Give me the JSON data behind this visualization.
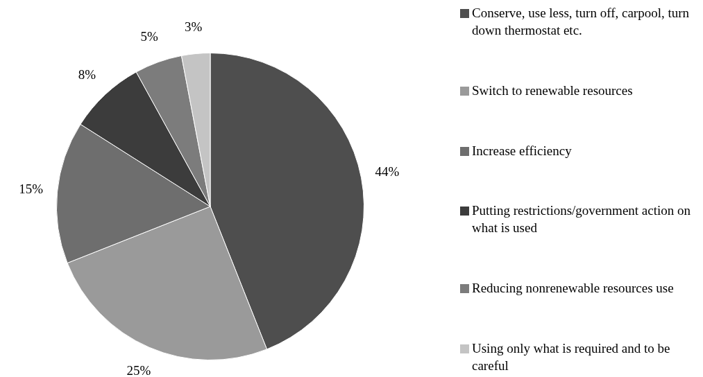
{
  "chart_data": {
    "type": "pie",
    "categories": [
      "Conserve, use less, turn off, carpool, turn down thermostat etc.",
      "Switch to renewable resources",
      "Increase efficiency",
      "Putting restrictions/government action on what is used",
      "Reducing nonrenewable resources use",
      "Using only what is required and to be careful"
    ],
    "values": [
      44,
      25,
      15,
      8,
      5,
      3
    ],
    "colors": [
      "#4e4e4e",
      "#9a9a9a",
      "#6e6e6e",
      "#3c3c3c",
      "#7c7c7c",
      "#c4c4c4"
    ],
    "value_labels": [
      "44%",
      "25%",
      "15%",
      "8%",
      "5%",
      "3%"
    ],
    "legend": "right"
  }
}
